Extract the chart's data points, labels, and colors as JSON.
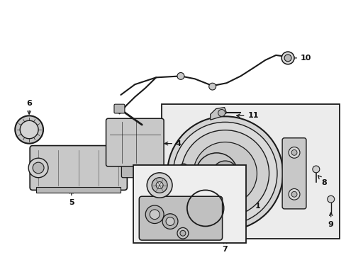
{
  "bg_color": "#ffffff",
  "line_color": "#1a1a1a",
  "fill_light": "#e0e0e0",
  "fill_mid": "#c8c8c8",
  "fill_dark": "#b0b0b0",
  "font_size": 8,
  "font_size_small": 7
}
